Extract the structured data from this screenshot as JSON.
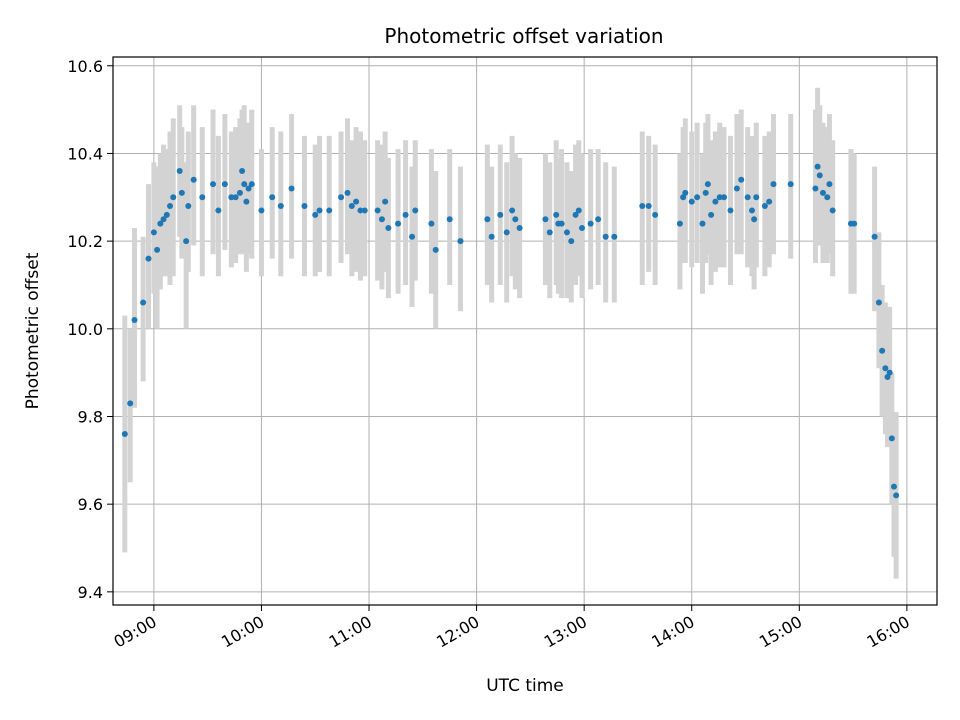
{
  "chart_data": {
    "type": "scatter",
    "title": "Photometric offset variation",
    "xlabel": "UTC time",
    "ylabel": "Photometric offset",
    "x_tick_labels": [
      "09:00",
      "10:00",
      "11:00",
      "12:00",
      "13:00",
      "14:00",
      "15:00",
      "16:00"
    ],
    "x_tick_hours": [
      9,
      10,
      11,
      12,
      13,
      14,
      15,
      16
    ],
    "xlim_hours": [
      8.62,
      16.28
    ],
    "y_ticks": [
      9.4,
      9.6,
      9.8,
      10.0,
      10.2,
      10.4,
      10.6
    ],
    "y_tick_labels": [
      "9.4",
      "9.6",
      "9.8",
      "10.0",
      "10.2",
      "10.4",
      "10.6"
    ],
    "ylim": [
      9.37,
      10.62
    ],
    "grid": true,
    "colors": {
      "point": "#1f77b4",
      "errorbar": "#d3d3d3",
      "grid": "#b0b0b0"
    },
    "points": [
      [
        8.73,
        9.76,
        9.49,
        10.03
      ],
      [
        8.78,
        9.83,
        9.65,
        10.0
      ],
      [
        8.82,
        10.02,
        9.82,
        10.23
      ],
      [
        8.9,
        10.06,
        9.88,
        10.21
      ],
      [
        8.95,
        10.16,
        10.0,
        10.33
      ],
      [
        9.0,
        10.22,
        10.08,
        10.38
      ],
      [
        9.03,
        10.18,
        10.0,
        10.37
      ],
      [
        9.06,
        10.24,
        10.09,
        10.4
      ],
      [
        9.09,
        10.25,
        10.12,
        10.42
      ],
      [
        9.12,
        10.26,
        10.12,
        10.41
      ],
      [
        9.15,
        10.28,
        10.1,
        10.45
      ],
      [
        9.18,
        10.3,
        10.12,
        10.48
      ],
      [
        9.24,
        10.36,
        10.21,
        10.51
      ],
      [
        9.26,
        10.31,
        10.16,
        10.46
      ],
      [
        9.3,
        10.2,
        10.0,
        10.38
      ],
      [
        9.32,
        10.28,
        10.13,
        10.45
      ],
      [
        9.37,
        10.34,
        10.19,
        10.51
      ],
      [
        9.45,
        10.3,
        10.12,
        10.46
      ],
      [
        9.55,
        10.33,
        10.17,
        10.5
      ],
      [
        9.6,
        10.27,
        10.12,
        10.44
      ],
      [
        9.66,
        10.33,
        10.18,
        10.49
      ],
      [
        9.72,
        10.3,
        10.14,
        10.45
      ],
      [
        9.76,
        10.3,
        10.15,
        10.46
      ],
      [
        9.8,
        10.31,
        10.17,
        10.48
      ],
      [
        9.82,
        10.36,
        10.21,
        10.5
      ],
      [
        9.84,
        10.33,
        10.17,
        10.51
      ],
      [
        9.86,
        10.29,
        10.13,
        10.47
      ],
      [
        9.88,
        10.32,
        10.17,
        10.47
      ],
      [
        9.91,
        10.33,
        10.16,
        10.5
      ],
      [
        10.0,
        10.27,
        10.12,
        10.41
      ],
      [
        10.1,
        10.3,
        10.16,
        10.46
      ],
      [
        10.18,
        10.28,
        10.12,
        10.45
      ],
      [
        10.28,
        10.32,
        10.16,
        10.49
      ],
      [
        10.4,
        10.28,
        10.12,
        10.44
      ],
      [
        10.5,
        10.26,
        10.12,
        10.42
      ],
      [
        10.54,
        10.27,
        10.13,
        10.44
      ],
      [
        10.63,
        10.27,
        10.12,
        10.44
      ],
      [
        10.74,
        10.3,
        10.15,
        10.45
      ],
      [
        10.8,
        10.31,
        10.17,
        10.48
      ],
      [
        10.84,
        10.28,
        10.12,
        10.43
      ],
      [
        10.88,
        10.29,
        10.13,
        10.46
      ],
      [
        10.92,
        10.27,
        10.11,
        10.45
      ],
      [
        10.96,
        10.27,
        10.12,
        10.43
      ],
      [
        11.08,
        10.27,
        10.11,
        10.43
      ],
      [
        11.12,
        10.25,
        10.09,
        10.42
      ],
      [
        11.15,
        10.29,
        10.13,
        10.45
      ],
      [
        11.18,
        10.23,
        10.07,
        10.39
      ],
      [
        11.27,
        10.24,
        10.08,
        10.41
      ],
      [
        11.34,
        10.26,
        10.1,
        10.43
      ],
      [
        11.4,
        10.21,
        10.05,
        10.37
      ],
      [
        11.43,
        10.27,
        10.11,
        10.43
      ],
      [
        11.58,
        10.24,
        10.08,
        10.41
      ],
      [
        11.62,
        10.18,
        10.0,
        10.36
      ],
      [
        11.75,
        10.25,
        10.1,
        10.41
      ],
      [
        11.85,
        10.2,
        10.04,
        10.37
      ],
      [
        12.1,
        10.25,
        10.1,
        10.42
      ],
      [
        12.14,
        10.21,
        10.06,
        10.37
      ],
      [
        12.22,
        10.26,
        10.1,
        10.42
      ],
      [
        12.28,
        10.22,
        10.06,
        10.38
      ],
      [
        12.33,
        10.27,
        10.12,
        10.44
      ],
      [
        12.36,
        10.25,
        10.09,
        10.4
      ],
      [
        12.4,
        10.23,
        10.07,
        10.39
      ],
      [
        12.64,
        10.25,
        10.1,
        10.4
      ],
      [
        12.68,
        10.22,
        10.07,
        10.38
      ],
      [
        12.74,
        10.26,
        10.1,
        10.43
      ],
      [
        12.76,
        10.24,
        10.08,
        10.39
      ],
      [
        12.79,
        10.24,
        10.07,
        10.41
      ],
      [
        12.84,
        10.22,
        10.07,
        10.38
      ],
      [
        12.88,
        10.2,
        10.06,
        10.36
      ],
      [
        12.92,
        10.26,
        10.1,
        10.42
      ],
      [
        12.95,
        10.27,
        10.12,
        10.43
      ],
      [
        12.98,
        10.23,
        10.07,
        10.4
      ],
      [
        13.06,
        10.24,
        10.09,
        10.41
      ],
      [
        13.13,
        10.25,
        10.1,
        10.41
      ],
      [
        13.2,
        10.21,
        10.06,
        10.38
      ],
      [
        13.28,
        10.21,
        10.06,
        10.37
      ],
      [
        13.54,
        10.28,
        10.1,
        10.45
      ],
      [
        13.6,
        10.28,
        10.13,
        10.44
      ],
      [
        13.66,
        10.26,
        10.1,
        10.42
      ],
      [
        13.89,
        10.24,
        10.09,
        10.4
      ],
      [
        13.92,
        10.3,
        10.15,
        10.46
      ],
      [
        13.94,
        10.31,
        10.15,
        10.48
      ],
      [
        14.0,
        10.29,
        10.14,
        10.45
      ],
      [
        14.05,
        10.3,
        10.15,
        10.47
      ],
      [
        14.1,
        10.24,
        10.08,
        10.4
      ],
      [
        14.13,
        10.31,
        10.15,
        10.47
      ],
      [
        14.15,
        10.33,
        10.17,
        10.49
      ],
      [
        14.18,
        10.26,
        10.1,
        10.43
      ],
      [
        14.22,
        10.29,
        10.13,
        10.45
      ],
      [
        14.26,
        10.3,
        10.14,
        10.47
      ],
      [
        14.3,
        10.3,
        10.14,
        10.46
      ],
      [
        14.36,
        10.27,
        10.1,
        10.44
      ],
      [
        14.42,
        10.32,
        10.17,
        10.49
      ],
      [
        14.46,
        10.34,
        10.17,
        10.5
      ],
      [
        14.52,
        10.3,
        10.14,
        10.46
      ],
      [
        14.56,
        10.27,
        10.12,
        10.44
      ],
      [
        14.58,
        10.25,
        10.09,
        10.42
      ],
      [
        14.6,
        10.3,
        10.14,
        10.47
      ],
      [
        14.68,
        10.28,
        10.12,
        10.44
      ],
      [
        14.72,
        10.29,
        10.14,
        10.45
      ],
      [
        14.76,
        10.33,
        10.17,
        10.49
      ],
      [
        14.92,
        10.33,
        10.16,
        10.49
      ],
      [
        15.15,
        10.32,
        10.15,
        10.5
      ],
      [
        15.17,
        10.37,
        10.2,
        10.55
      ],
      [
        15.19,
        10.35,
        10.19,
        10.51
      ],
      [
        15.22,
        10.31,
        10.15,
        10.47
      ],
      [
        15.26,
        10.3,
        10.15,
        10.46
      ],
      [
        15.28,
        10.33,
        10.17,
        10.49
      ],
      [
        15.31,
        10.27,
        10.12,
        10.43
      ],
      [
        15.48,
        10.24,
        10.08,
        10.41
      ],
      [
        15.51,
        10.24,
        10.08,
        10.4
      ],
      [
        15.7,
        10.21,
        10.04,
        10.37
      ],
      [
        15.74,
        10.06,
        9.91,
        10.22
      ],
      [
        15.77,
        9.95,
        9.8,
        10.1
      ],
      [
        15.8,
        9.91,
        9.76,
        10.06
      ],
      [
        15.82,
        9.89,
        9.73,
        10.04
      ],
      [
        15.84,
        9.9,
        9.74,
        10.05
      ],
      [
        15.86,
        9.75,
        9.6,
        9.9
      ],
      [
        15.88,
        9.64,
        9.48,
        9.8
      ],
      [
        15.9,
        9.62,
        9.43,
        9.81
      ]
    ]
  }
}
